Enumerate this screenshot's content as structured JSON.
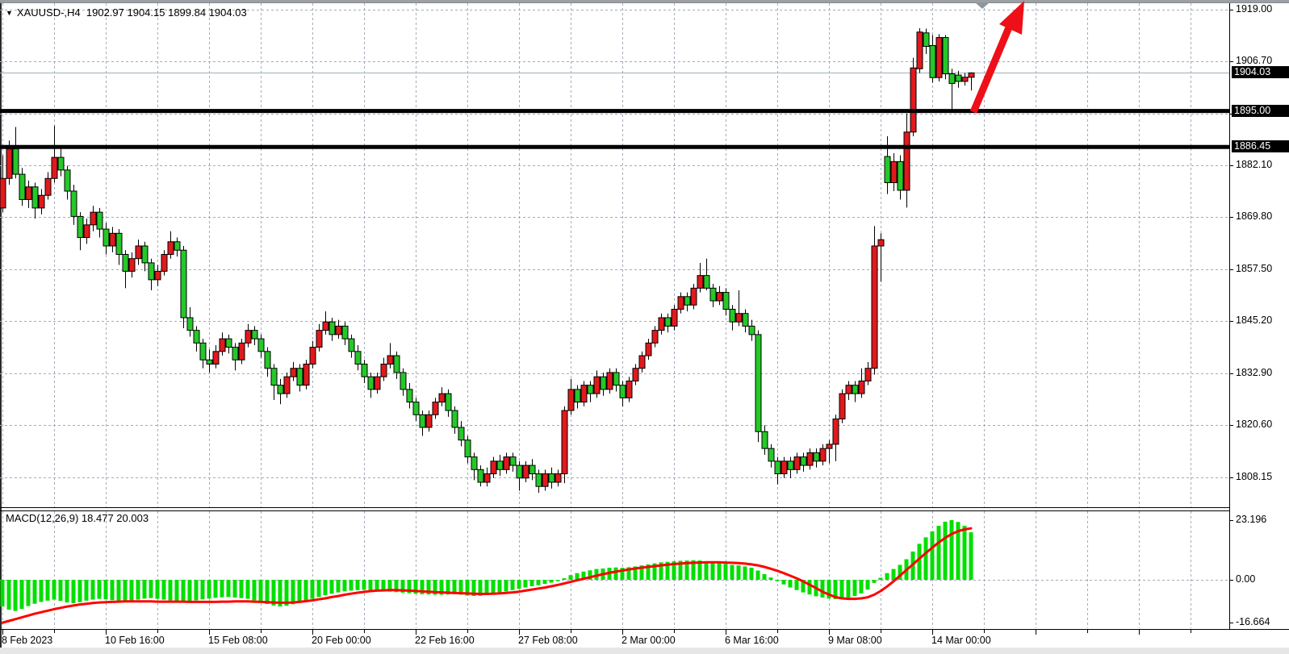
{
  "window": {
    "title_symbol": "XAUUSD-,H4",
    "ohlc_line": {
      "open": "1902.97",
      "high": "1904.15",
      "low": "1899.84",
      "close": "1904.03"
    },
    "title_text": "XAUUSD-,H4  1902.97 1904.15 1899.84 1904.03"
  },
  "price_axis": {
    "labels": [
      {
        "text": "1919.00",
        "price": 1919.0
      },
      {
        "text": "1906.70",
        "price": 1906.7
      },
      {
        "text": "1882.10",
        "price": 1882.1
      },
      {
        "text": "1869.80",
        "price": 1869.8
      },
      {
        "text": "1857.50",
        "price": 1857.5
      },
      {
        "text": "1845.20",
        "price": 1845.2
      },
      {
        "text": "1832.90",
        "price": 1832.9
      },
      {
        "text": "1820.60",
        "price": 1820.6
      },
      {
        "text": "1808.15",
        "price": 1808.15
      }
    ],
    "boxed_labels": [
      {
        "text": "1904.03",
        "price": 1904.03,
        "kind": "current-price"
      },
      {
        "text": "1895.00",
        "price": 1895.0,
        "kind": "line-price"
      },
      {
        "text": "1886.45",
        "price": 1886.45,
        "kind": "line-price"
      }
    ]
  },
  "time_axis": {
    "labels": [
      {
        "bar": 0,
        "text": "8 Feb 2023"
      },
      {
        "bar": 16,
        "text": "10 Feb 16:00"
      },
      {
        "bar": 32,
        "text": "15 Feb 08:00"
      },
      {
        "bar": 48,
        "text": "20 Feb 00:00"
      },
      {
        "bar": 64,
        "text": "22 Feb 16:00"
      },
      {
        "bar": 80,
        "text": "27 Feb 08:00"
      },
      {
        "bar": 96,
        "text": "2 Mar 00:00"
      },
      {
        "bar": 112,
        "text": "6 Mar 16:00"
      },
      {
        "bar": 128,
        "text": "9 Mar 08:00"
      },
      {
        "bar": 144,
        "text": "14 Mar 00:00"
      }
    ]
  },
  "macd_panel": {
    "label_text": "MACD(12,26,9) 18.477 20.003",
    "indicator": "MACD",
    "params": "12,26,9",
    "main_value": "18.477",
    "signal_value": "20.003",
    "axis_labels": [
      {
        "text": "23.196",
        "value": 23.196
      },
      {
        "text": "0.00",
        "value": 0
      },
      {
        "text": "-16.664",
        "value": -16.664
      }
    ]
  },
  "chart_data": {
    "type": "candlestick",
    "title": "XAUUSD- H4",
    "symbol": "XAUUSD-",
    "timeframe": "H4",
    "x_range": [
      "8 Feb 2023",
      "15 Mar 2023 00:00"
    ],
    "ylim": [
      1799,
      1921
    ],
    "grid_prices": [
      1919.0,
      1906.7,
      1894.4,
      1882.1,
      1869.8,
      1857.5,
      1845.2,
      1832.9,
      1820.6,
      1808.15
    ],
    "horizontal_black_lines": [
      1895.0,
      1886.45
    ],
    "current_price": 1904.03,
    "last_bar_ohlc": {
      "open": 1902.97,
      "high": 1904.15,
      "low": 1899.84,
      "close": 1904.03
    },
    "color_scheme_note": "red fill = close>=open (bull), green fill = close<open (bear)",
    "bars_ohlc": [
      [
        1872,
        1884.5,
        1871,
        1879
      ],
      [
        1879,
        1888,
        1877.5,
        1886
      ],
      [
        1886,
        1891.2,
        1879,
        1880
      ],
      [
        1880,
        1881.5,
        1872.5,
        1874
      ],
      [
        1874,
        1878.5,
        1872,
        1877
      ],
      [
        1877,
        1878,
        1869.5,
        1872
      ],
      [
        1872,
        1876.5,
        1870.5,
        1875
      ],
      [
        1875,
        1880.5,
        1874,
        1879
      ],
      [
        1879,
        1891.5,
        1878,
        1884
      ],
      [
        1884,
        1886,
        1879.5,
        1881
      ],
      [
        1881,
        1882,
        1874,
        1876
      ],
      [
        1876,
        1877.5,
        1868,
        1870
      ],
      [
        1870,
        1871,
        1862,
        1865
      ],
      [
        1865,
        1869.5,
        1863.5,
        1868
      ],
      [
        1868,
        1872.5,
        1866.5,
        1871
      ],
      [
        1871,
        1872,
        1865,
        1867
      ],
      [
        1867,
        1868.5,
        1861,
        1863
      ],
      [
        1863,
        1867.5,
        1861.5,
        1866
      ],
      [
        1866,
        1867,
        1858.5,
        1861
      ],
      [
        1861,
        1862,
        1853,
        1857
      ],
      [
        1857,
        1861.5,
        1855.5,
        1860
      ],
      [
        1860,
        1864.5,
        1858.5,
        1863
      ],
      [
        1863,
        1864,
        1857,
        1859
      ],
      [
        1859,
        1860,
        1852.5,
        1855
      ],
      [
        1855,
        1858.5,
        1853.5,
        1857
      ],
      [
        1857,
        1862,
        1856,
        1861
      ],
      [
        1861,
        1866.5,
        1860,
        1864
      ],
      [
        1864,
        1865,
        1860.5,
        1862
      ],
      [
        1862,
        1863,
        1843.5,
        1846
      ],
      [
        1846,
        1848.5,
        1841.5,
        1843
      ],
      [
        1843,
        1844,
        1838,
        1840
      ],
      [
        1840,
        1841,
        1834,
        1836
      ],
      [
        1836,
        1838.5,
        1833,
        1835
      ],
      [
        1835,
        1839.5,
        1834,
        1838
      ],
      [
        1838,
        1842.5,
        1837,
        1841
      ],
      [
        1841,
        1842,
        1837.5,
        1839
      ],
      [
        1839,
        1840,
        1833.5,
        1836
      ],
      [
        1836,
        1841,
        1835,
        1840
      ],
      [
        1840,
        1844.5,
        1839,
        1843
      ],
      [
        1843,
        1844,
        1839.5,
        1841
      ],
      [
        1841,
        1842,
        1836.5,
        1838
      ],
      [
        1838,
        1839,
        1832,
        1834
      ],
      [
        1834,
        1835,
        1826.5,
        1830
      ],
      [
        1830,
        1831.5,
        1825.5,
        1828
      ],
      [
        1828,
        1833,
        1827,
        1832
      ],
      [
        1832,
        1835.5,
        1831,
        1834
      ],
      [
        1834,
        1835,
        1828.5,
        1830
      ],
      [
        1830,
        1836,
        1829,
        1835
      ],
      [
        1835,
        1840.5,
        1834,
        1839
      ],
      [
        1839,
        1844.5,
        1838,
        1843
      ],
      [
        1843,
        1847.5,
        1842,
        1845
      ],
      [
        1845,
        1846,
        1840.5,
        1842
      ],
      [
        1842,
        1845.5,
        1841,
        1844
      ],
      [
        1844,
        1845,
        1839.5,
        1841
      ],
      [
        1841,
        1842,
        1836.5,
        1838
      ],
      [
        1838,
        1839.5,
        1833.5,
        1835
      ],
      [
        1835,
        1836,
        1830.5,
        1832
      ],
      [
        1832,
        1833,
        1827,
        1829
      ],
      [
        1829,
        1833,
        1828,
        1832
      ],
      [
        1832,
        1836.5,
        1831,
        1835
      ],
      [
        1835,
        1840,
        1834,
        1837
      ],
      [
        1837,
        1838,
        1831.5,
        1833
      ],
      [
        1833,
        1834,
        1827.5,
        1829
      ],
      [
        1829,
        1830.5,
        1824.5,
        1826
      ],
      [
        1826,
        1827,
        1821.5,
        1823
      ],
      [
        1823,
        1824,
        1818,
        1820
      ],
      [
        1820,
        1824,
        1819,
        1823
      ],
      [
        1823,
        1827,
        1822,
        1826
      ],
      [
        1826,
        1829.5,
        1825,
        1828
      ],
      [
        1828,
        1829,
        1822.5,
        1824
      ],
      [
        1824,
        1825,
        1818.5,
        1820
      ],
      [
        1820,
        1821.5,
        1815.5,
        1817
      ],
      [
        1817,
        1818,
        1811.5,
        1813
      ],
      [
        1813,
        1814,
        1807.5,
        1810
      ],
      [
        1810,
        1811,
        1806,
        1807
      ],
      [
        1807,
        1810.5,
        1806,
        1809
      ],
      [
        1809,
        1813,
        1808,
        1812
      ],
      [
        1812,
        1813.5,
        1808.5,
        1810
      ],
      [
        1810,
        1814,
        1809,
        1813
      ],
      [
        1813,
        1814,
        1809.5,
        1811
      ],
      [
        1811,
        1812,
        1805,
        1808
      ],
      [
        1808,
        1812,
        1807,
        1811
      ],
      [
        1811,
        1812.5,
        1807.5,
        1809
      ],
      [
        1809,
        1810,
        1804.5,
        1806
      ],
      [
        1806,
        1810,
        1805,
        1809
      ],
      [
        1809,
        1810.5,
        1805.5,
        1807
      ],
      [
        1807,
        1810,
        1806,
        1809
      ],
      [
        1809,
        1825,
        1806.8,
        1824
      ],
      [
        1824,
        1831.5,
        1823,
        1829
      ],
      [
        1829,
        1830,
        1824.5,
        1826
      ],
      [
        1826,
        1831,
        1825,
        1830
      ],
      [
        1830,
        1831,
        1826,
        1828
      ],
      [
        1828,
        1833.5,
        1827,
        1832
      ],
      [
        1832,
        1833,
        1827.5,
        1829
      ],
      [
        1829,
        1834,
        1828,
        1833
      ],
      [
        1833,
        1834,
        1828.5,
        1830
      ],
      [
        1830,
        1831,
        1825,
        1827
      ],
      [
        1827,
        1832,
        1826,
        1831
      ],
      [
        1831,
        1835,
        1830,
        1834
      ],
      [
        1834,
        1838,
        1833,
        1837
      ],
      [
        1837,
        1841,
        1836,
        1840
      ],
      [
        1840,
        1844,
        1839,
        1843
      ],
      [
        1843,
        1847,
        1842,
        1846
      ],
      [
        1846,
        1847,
        1842.5,
        1844
      ],
      [
        1844,
        1849,
        1843,
        1848
      ],
      [
        1848,
        1852,
        1847,
        1851
      ],
      [
        1851,
        1852,
        1847.5,
        1849
      ],
      [
        1849,
        1854,
        1848,
        1853
      ],
      [
        1853,
        1859,
        1852,
        1856
      ],
      [
        1856,
        1860,
        1852.5,
        1853
      ],
      [
        1853,
        1854,
        1848.5,
        1850
      ],
      [
        1850,
        1853.5,
        1849,
        1852
      ],
      [
        1852,
        1853,
        1846.5,
        1848
      ],
      [
        1848,
        1849,
        1843,
        1845
      ],
      [
        1845,
        1852.5,
        1844,
        1847
      ],
      [
        1847,
        1848,
        1842.5,
        1844
      ],
      [
        1844,
        1845.5,
        1840.5,
        1842
      ],
      [
        1842,
        1843,
        1816.5,
        1819
      ],
      [
        1819,
        1820.5,
        1813.5,
        1815
      ],
      [
        1815,
        1816,
        1810.5,
        1812
      ],
      [
        1812,
        1813,
        1806.5,
        1809
      ],
      [
        1809,
        1813,
        1808,
        1812
      ],
      [
        1812,
        1813,
        1808,
        1810
      ],
      [
        1810,
        1814,
        1809,
        1813
      ],
      [
        1813,
        1814,
        1809.5,
        1811
      ],
      [
        1811,
        1815,
        1810,
        1814
      ],
      [
        1814,
        1815,
        1810.5,
        1812
      ],
      [
        1812,
        1816,
        1811,
        1815
      ],
      [
        1815,
        1817,
        1811.5,
        1816
      ],
      [
        1816,
        1823,
        1812,
        1822
      ],
      [
        1822,
        1829,
        1821,
        1828
      ],
      [
        1828,
        1831,
        1826.5,
        1830
      ],
      [
        1830,
        1831,
        1826,
        1828
      ],
      [
        1828,
        1834,
        1827,
        1831
      ],
      [
        1831,
        1835.5,
        1830,
        1834
      ],
      [
        1834,
        1867.7,
        1832.5,
        1863
      ],
      [
        1863,
        1866,
        1854.5,
        1864.5
      ],
      [
        1884.2,
        1889,
        1875.3,
        1878
      ],
      [
        1878,
        1885,
        1876,
        1883
      ],
      [
        1883,
        1884.5,
        1874,
        1876.2
      ],
      [
        1876.2,
        1894.4,
        1872.1,
        1890
      ],
      [
        1890,
        1907.6,
        1889,
        1905.2
      ],
      [
        1905,
        1914.6,
        1904,
        1913.7
      ],
      [
        1913.5,
        1914.5,
        1908.5,
        1910.3
      ],
      [
        1910.5,
        1913,
        1901.7,
        1902.9
      ],
      [
        1902.9,
        1913.2,
        1902,
        1912.4
      ],
      [
        1912.4,
        1913,
        1902.5,
        1903.8
      ],
      [
        1903.8,
        1905,
        1895.1,
        1901.5
      ],
      [
        1903.5,
        1904.5,
        1900.5,
        1902
      ],
      [
        1902,
        1904,
        1901,
        1903
      ],
      [
        1902.97,
        1904.15,
        1899.84,
        1904.03
      ]
    ],
    "macd": {
      "type": "bar",
      "params": [
        12,
        26,
        9
      ],
      "ylim": [
        -16.664,
        23.196
      ],
      "last_main": 18.477,
      "last_signal": 20.003,
      "histogram": [
        -10.4,
        -11.6,
        -12.1,
        -11.3,
        -10.2,
        -9.3,
        -8.6,
        -8.1,
        -7.7,
        -8.2,
        -8.8,
        -9.1,
        -8.7,
        -8.1,
        -7.7,
        -7.4,
        -7.6,
        -7.9,
        -8.2,
        -8.4,
        -8.1,
        -7.7,
        -7.3,
        -7.1,
        -7.4,
        -7.7,
        -8.0,
        -8.2,
        -8.5,
        -8.3,
        -8.0,
        -7.6,
        -7.3,
        -7.0,
        -6.8,
        -6.7,
        -6.9,
        -7.1,
        -7.4,
        -8.0,
        -8.7,
        -9.4,
        -10.0,
        -10.4,
        -10.1,
        -9.5,
        -8.8,
        -8.1,
        -7.4,
        -6.7,
        -6.0,
        -5.4,
        -4.9,
        -4.5,
        -4.2,
        -4.0,
        -3.9,
        -4.0,
        -4.2,
        -4.4,
        -4.6,
        -4.8,
        -5.0,
        -5.2,
        -5.4,
        -5.6,
        -5.7,
        -5.8,
        -5.8,
        -5.7,
        -5.6,
        -5.8,
        -6.1,
        -6.3,
        -6.2,
        -5.9,
        -5.5,
        -5.0,
        -4.5,
        -4.0,
        -3.5,
        -3.0,
        -2.5,
        -2.1,
        -1.6,
        -1.1,
        -0.5,
        0.6,
        1.8,
        2.6,
        3.2,
        3.7,
        4.2,
        4.4,
        4.7,
        4.8,
        4.7,
        4.9,
        5.2,
        5.6,
        6.0,
        6.4,
        6.8,
        7.0,
        7.2,
        7.4,
        7.5,
        7.6,
        7.5,
        7.2,
        6.8,
        6.5,
        6.2,
        5.8,
        5.6,
        5.2,
        4.7,
        3.6,
        2.2,
        0.9,
        -0.5,
        -1.8,
        -3.0,
        -4.0,
        -4.9,
        -5.7,
        -6.4,
        -6.9,
        -7.3,
        -7.5,
        -7.3,
        -6.9,
        -6.3,
        -5.3,
        -3.8,
        -1.2,
        0.8,
        2.6,
        4.2,
        5.8,
        8.0,
        11.0,
        14.0,
        16.5,
        18.8,
        21.0,
        22.6,
        23.196,
        22.5,
        21.0,
        18.477
      ],
      "signal": [
        -16.664,
        -16.0,
        -15.3,
        -14.6,
        -13.9,
        -13.2,
        -12.6,
        -12.0,
        -11.4,
        -10.9,
        -10.4,
        -10.0,
        -9.6,
        -9.3,
        -9.0,
        -8.8,
        -8.7,
        -8.6,
        -8.5,
        -8.4,
        -8.4,
        -8.4,
        -8.4,
        -8.4,
        -8.5,
        -8.5,
        -8.5,
        -8.5,
        -8.5,
        -8.6,
        -8.6,
        -8.6,
        -8.6,
        -8.6,
        -8.5,
        -8.5,
        -8.4,
        -8.4,
        -8.4,
        -8.5,
        -8.6,
        -8.7,
        -8.8,
        -8.9,
        -8.9,
        -8.8,
        -8.6,
        -8.3,
        -8.0,
        -7.6,
        -7.2,
        -6.7,
        -6.3,
        -5.8,
        -5.4,
        -5.0,
        -4.7,
        -4.4,
        -4.2,
        -4.1,
        -4.0,
        -4.0,
        -4.1,
        -4.2,
        -4.3,
        -4.5,
        -4.6,
        -4.8,
        -4.9,
        -5.0,
        -5.1,
        -5.2,
        -5.3,
        -5.4,
        -5.5,
        -5.5,
        -5.4,
        -5.3,
        -5.1,
        -4.9,
        -4.6,
        -4.2,
        -3.8,
        -3.4,
        -3.0,
        -2.5,
        -2.0,
        -1.4,
        -0.8,
        -0.2,
        0.4,
        1.0,
        1.6,
        2.2,
        2.7,
        3.2,
        3.6,
        4.0,
        4.4,
        4.7,
        5.0,
        5.3,
        5.6,
        5.9,
        6.1,
        6.3,
        6.5,
        6.6,
        6.7,
        6.8,
        6.8,
        6.8,
        6.7,
        6.6,
        6.5,
        6.3,
        6.0,
        5.6,
        5.0,
        4.3,
        3.5,
        2.6,
        1.6,
        0.6,
        -0.6,
        -1.9,
        -3.2,
        -4.6,
        -5.7,
        -6.7,
        -7.2,
        -7.4,
        -7.4,
        -7.2,
        -6.8,
        -5.8,
        -4.4,
        -2.6,
        -0.6,
        1.6,
        3.8,
        6.0,
        8.2,
        10.4,
        12.5,
        14.5,
        16.3,
        17.8,
        18.9,
        19.6,
        20.003
      ]
    },
    "annotations": {
      "up_arrow": {
        "description": "thick red up arrow from 1895 line toward top right",
        "tail_xy": [
          1206,
          139
        ],
        "tip_xy": [
          1269,
          1
        ]
      },
      "chart_shift_marker": {
        "description": "gray down triangle at top",
        "x": 1217
      }
    }
  },
  "colors": {
    "bull_candle": "#e2191c",
    "bear_candle": "#25c829",
    "candle_border": "#000000",
    "histogram": "#00df00",
    "signal_line": "#ff0000",
    "sr_line": "#000000",
    "grid": "#a4abb8",
    "axis_line": "#000000",
    "price_box_bg": "#000000",
    "price_box_text": "#ffffff",
    "current_price_line": "#9fafbc",
    "arrow": "#ee0f18",
    "shift_marker": "#8e969d"
  }
}
